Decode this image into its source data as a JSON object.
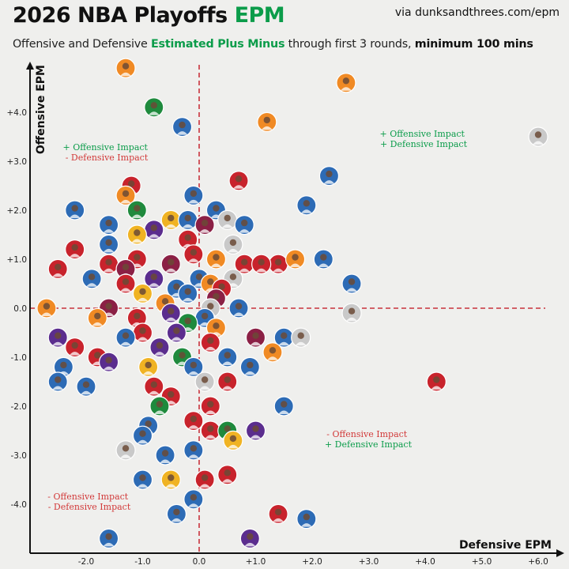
{
  "header": {
    "title_main": "2026 NBA Playoffs ",
    "title_accent": "EPM",
    "source": "via dunksandthrees.com/epm",
    "subtitle_pre": "Offensive and Defensive ",
    "subtitle_accent": "Estimated Plus Minus",
    "subtitle_mid": " through first 3 rounds, ",
    "subtitle_bold": "minimum 100 mins"
  },
  "quadrants": {
    "top_left": [
      "+ Offensive Impact",
      "- Defensive Impact"
    ],
    "top_right": [
      "+ Offensive Impact",
      "+ Defensive Impact"
    ],
    "bottom_left": [
      "- Offensive Impact",
      "- Defensive Impact"
    ],
    "bottom_right": [
      "- Offensive Impact",
      "+ Defensive Impact"
    ]
  },
  "colors": {
    "accent_green": "#0b9c4a",
    "negative_red": "#d23a3a",
    "zero_line": "#c8323c",
    "axis": "#111111"
  },
  "chart_data": {
    "type": "scatter",
    "title": "2026 NBA Playoffs EPM",
    "subtitle": "Offensive and Defensive Estimated Plus Minus through first 3 rounds, minimum 100 mins",
    "xlabel": "Defensive EPM",
    "ylabel": "Offensive EPM",
    "xlim": [
      -3.0,
      6.3
    ],
    "ylim": [
      -5.0,
      5.0
    ],
    "xticks": [
      -2.0,
      -1.0,
      0.0,
      1.0,
      2.0,
      3.0,
      4.0,
      5.0,
      6.0
    ],
    "xtick_labels": [
      "-2.0",
      "-1.0",
      "0.0",
      "+1.0",
      "+2.0",
      "+3.0",
      "+4.0",
      "+5.0",
      "+6.0"
    ],
    "yticks": [
      -4.0,
      -3.0,
      -2.0,
      -1.0,
      0.0,
      1.0,
      2.0,
      3.0,
      4.0
    ],
    "ytick_labels": [
      "-4.0",
      "-3.0",
      "-2.0",
      "-1.0",
      "0.0",
      "+1.0",
      "+2.0",
      "+3.0",
      "+4.0"
    ],
    "zero_lines": true,
    "grid": false,
    "points": [
      {
        "x": -1.3,
        "y": 4.9,
        "color": "#f08a24"
      },
      {
        "x": 2.6,
        "y": 4.6,
        "color": "#f08a24"
      },
      {
        "x": -0.8,
        "y": 4.1,
        "color": "#1f8a3d"
      },
      {
        "x": 1.2,
        "y": 3.8,
        "color": "#f08a24"
      },
      {
        "x": -0.3,
        "y": 3.7,
        "color": "#2d6bb5"
      },
      {
        "x": 6.0,
        "y": 3.5,
        "color": "#c9c9c9"
      },
      {
        "x": 2.3,
        "y": 2.7,
        "color": "#2d6bb5"
      },
      {
        "x": 0.7,
        "y": 2.6,
        "color": "#c8232c"
      },
      {
        "x": -1.2,
        "y": 2.5,
        "color": "#c8232c"
      },
      {
        "x": -1.3,
        "y": 2.3,
        "color": "#f08a24"
      },
      {
        "x": -0.1,
        "y": 2.3,
        "color": "#2d6bb5"
      },
      {
        "x": 1.9,
        "y": 2.1,
        "color": "#2d6bb5"
      },
      {
        "x": -2.2,
        "y": 2.0,
        "color": "#2d6bb5"
      },
      {
        "x": -1.1,
        "y": 2.0,
        "color": "#1f8a3d"
      },
      {
        "x": 0.3,
        "y": 2.0,
        "color": "#2d6bb5"
      },
      {
        "x": -1.6,
        "y": 1.7,
        "color": "#2d6bb5"
      },
      {
        "x": -0.5,
        "y": 1.8,
        "color": "#f0b323"
      },
      {
        "x": -0.2,
        "y": 1.8,
        "color": "#2d6bb5"
      },
      {
        "x": 0.5,
        "y": 1.8,
        "color": "#c9c9c9"
      },
      {
        "x": 0.1,
        "y": 1.7,
        "color": "#8b2045"
      },
      {
        "x": 0.8,
        "y": 1.7,
        "color": "#2d6bb5"
      },
      {
        "x": -0.8,
        "y": 1.6,
        "color": "#5b2d8e"
      },
      {
        "x": -1.1,
        "y": 1.5,
        "color": "#f0b323"
      },
      {
        "x": -0.2,
        "y": 1.4,
        "color": "#c8232c"
      },
      {
        "x": -1.6,
        "y": 1.3,
        "color": "#2d6bb5"
      },
      {
        "x": -2.2,
        "y": 1.2,
        "color": "#c8232c"
      },
      {
        "x": 0.6,
        "y": 1.3,
        "color": "#c9c9c9"
      },
      {
        "x": -0.1,
        "y": 1.1,
        "color": "#c8232c"
      },
      {
        "x": 0.3,
        "y": 1.0,
        "color": "#f08a24"
      },
      {
        "x": -1.6,
        "y": 0.9,
        "color": "#c8232c"
      },
      {
        "x": -1.1,
        "y": 1.0,
        "color": "#c8232c"
      },
      {
        "x": -0.5,
        "y": 0.9,
        "color": "#8b2045"
      },
      {
        "x": 0.8,
        "y": 0.9,
        "color": "#c8232c"
      },
      {
        "x": 1.4,
        "y": 0.9,
        "color": "#c8232c"
      },
      {
        "x": 1.7,
        "y": 1.0,
        "color": "#f08a24"
      },
      {
        "x": 2.2,
        "y": 1.0,
        "color": "#2d6bb5"
      },
      {
        "x": -2.5,
        "y": 0.8,
        "color": "#c8232c"
      },
      {
        "x": -1.3,
        "y": 0.8,
        "color": "#8b2045"
      },
      {
        "x": 1.1,
        "y": 0.9,
        "color": "#c8232c"
      },
      {
        "x": -0.8,
        "y": 0.6,
        "color": "#5b2d8e"
      },
      {
        "x": 0.0,
        "y": 0.6,
        "color": "#2d6bb5"
      },
      {
        "x": 0.6,
        "y": 0.6,
        "color": "#c9c9c9"
      },
      {
        "x": 2.7,
        "y": 0.5,
        "color": "#2d6bb5"
      },
      {
        "x": -1.9,
        "y": 0.6,
        "color": "#2d6bb5"
      },
      {
        "x": -1.3,
        "y": 0.5,
        "color": "#c8232c"
      },
      {
        "x": -0.4,
        "y": 0.4,
        "color": "#2d6bb5"
      },
      {
        "x": 0.2,
        "y": 0.5,
        "color": "#f08a24"
      },
      {
        "x": 0.4,
        "y": 0.4,
        "color": "#c8232c"
      },
      {
        "x": -1.0,
        "y": 0.3,
        "color": "#f0b323"
      },
      {
        "x": -0.2,
        "y": 0.3,
        "color": "#2d6bb5"
      },
      {
        "x": 0.3,
        "y": 0.2,
        "color": "#8b2045"
      },
      {
        "x": -2.7,
        "y": 0.0,
        "color": "#f08a24"
      },
      {
        "x": -1.6,
        "y": 0.0,
        "color": "#8b2045"
      },
      {
        "x": -0.6,
        "y": 0.1,
        "color": "#f08a24"
      },
      {
        "x": 0.2,
        "y": 0.0,
        "color": "#c9c9c9"
      },
      {
        "x": 0.7,
        "y": 0.0,
        "color": "#2d6bb5"
      },
      {
        "x": 2.7,
        "y": -0.1,
        "color": "#c9c9c9"
      },
      {
        "x": -1.8,
        "y": -0.2,
        "color": "#f08a24"
      },
      {
        "x": -1.1,
        "y": -0.2,
        "color": "#c8232c"
      },
      {
        "x": -0.5,
        "y": -0.1,
        "color": "#5b2d8e"
      },
      {
        "x": 0.1,
        "y": -0.2,
        "color": "#2d6bb5"
      },
      {
        "x": -0.2,
        "y": -0.3,
        "color": "#1f8a3d"
      },
      {
        "x": -1.0,
        "y": -0.5,
        "color": "#c8232c"
      },
      {
        "x": -0.4,
        "y": -0.5,
        "color": "#5b2d8e"
      },
      {
        "x": 0.3,
        "y": -0.4,
        "color": "#f08a24"
      },
      {
        "x": -2.5,
        "y": -0.6,
        "color": "#5b2d8e"
      },
      {
        "x": -1.3,
        "y": -0.6,
        "color": "#2d6bb5"
      },
      {
        "x": 1.0,
        "y": -0.6,
        "color": "#8b2045"
      },
      {
        "x": 1.5,
        "y": -0.6,
        "color": "#2d6bb5"
      },
      {
        "x": 1.8,
        "y": -0.6,
        "color": "#c9c9c9"
      },
      {
        "x": -2.2,
        "y": -0.8,
        "color": "#c8232c"
      },
      {
        "x": -0.7,
        "y": -0.8,
        "color": "#5b2d8e"
      },
      {
        "x": 0.2,
        "y": -0.7,
        "color": "#c8232c"
      },
      {
        "x": 1.3,
        "y": -0.9,
        "color": "#f08a24"
      },
      {
        "x": -1.8,
        "y": -1.0,
        "color": "#c8232c"
      },
      {
        "x": -0.3,
        "y": -1.0,
        "color": "#1f8a3d"
      },
      {
        "x": 0.5,
        "y": -1.0,
        "color": "#2d6bb5"
      },
      {
        "x": -2.4,
        "y": -1.2,
        "color": "#2d6bb5"
      },
      {
        "x": -1.6,
        "y": -1.1,
        "color": "#5b2d8e"
      },
      {
        "x": -0.9,
        "y": -1.2,
        "color": "#f0b323"
      },
      {
        "x": -0.1,
        "y": -1.2,
        "color": "#2d6bb5"
      },
      {
        "x": 0.9,
        "y": -1.2,
        "color": "#2d6bb5"
      },
      {
        "x": -2.5,
        "y": -1.5,
        "color": "#2d6bb5"
      },
      {
        "x": -2.0,
        "y": -1.6,
        "color": "#2d6bb5"
      },
      {
        "x": -0.8,
        "y": -1.6,
        "color": "#c8232c"
      },
      {
        "x": 0.1,
        "y": -1.5,
        "color": "#c9c9c9"
      },
      {
        "x": 0.5,
        "y": -1.5,
        "color": "#c8232c"
      },
      {
        "x": 4.2,
        "y": -1.5,
        "color": "#c8232c"
      },
      {
        "x": -0.5,
        "y": -1.8,
        "color": "#c8232c"
      },
      {
        "x": -0.7,
        "y": -2.0,
        "color": "#1f8a3d"
      },
      {
        "x": 0.2,
        "y": -2.0,
        "color": "#c8232c"
      },
      {
        "x": 1.5,
        "y": -2.0,
        "color": "#2d6bb5"
      },
      {
        "x": -0.1,
        "y": -2.3,
        "color": "#c8232c"
      },
      {
        "x": -0.9,
        "y": -2.4,
        "color": "#2d6bb5"
      },
      {
        "x": -1.0,
        "y": -2.6,
        "color": "#2d6bb5"
      },
      {
        "x": 0.2,
        "y": -2.5,
        "color": "#c8232c"
      },
      {
        "x": 0.5,
        "y": -2.5,
        "color": "#1f8a3d"
      },
      {
        "x": 1.0,
        "y": -2.5,
        "color": "#5b2d8e"
      },
      {
        "x": 0.6,
        "y": -2.7,
        "color": "#f0b323"
      },
      {
        "x": -1.3,
        "y": -2.9,
        "color": "#c9c9c9"
      },
      {
        "x": -0.6,
        "y": -3.0,
        "color": "#2d6bb5"
      },
      {
        "x": -0.1,
        "y": -2.9,
        "color": "#2d6bb5"
      },
      {
        "x": -1.0,
        "y": -3.5,
        "color": "#2d6bb5"
      },
      {
        "x": -0.5,
        "y": -3.5,
        "color": "#f0b323"
      },
      {
        "x": 0.1,
        "y": -3.5,
        "color": "#c8232c"
      },
      {
        "x": 0.5,
        "y": -3.4,
        "color": "#c8232c"
      },
      {
        "x": -0.1,
        "y": -3.9,
        "color": "#2d6bb5"
      },
      {
        "x": -0.4,
        "y": -4.2,
        "color": "#2d6bb5"
      },
      {
        "x": 1.4,
        "y": -4.2,
        "color": "#c8232c"
      },
      {
        "x": 1.9,
        "y": -4.3,
        "color": "#2d6bb5"
      },
      {
        "x": -1.6,
        "y": -4.7,
        "color": "#2d6bb5"
      },
      {
        "x": 0.9,
        "y": -4.7,
        "color": "#5b2d8e"
      }
    ]
  }
}
